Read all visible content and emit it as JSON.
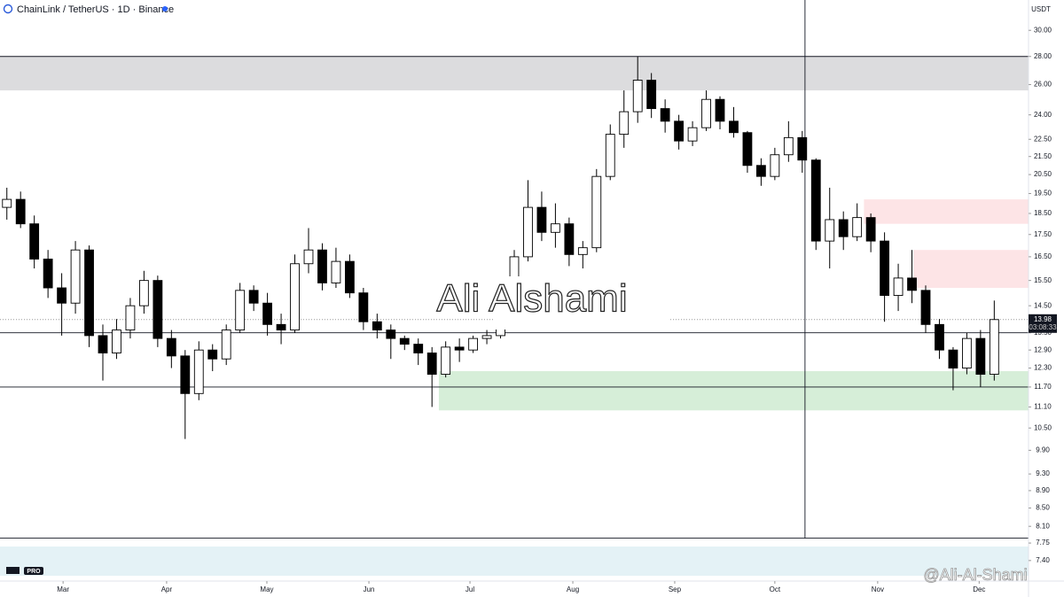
{
  "header": {
    "title": "ChainLink / TetherUS · 1D · Binance",
    "currency": "USDT"
  },
  "watermark": "Ali Alshami",
  "signature": "@Ali-Al-Shami",
  "logo": "PRO",
  "chart_data": {
    "type": "candlestick",
    "log_scale": true,
    "up_color": "#ffffff",
    "down_color": "#000000",
    "ylim": [
      7.01,
      32.5
    ],
    "xlim": [
      -0.5,
      74.5
    ],
    "yticks": [
      {
        "value": 30,
        "label": "30.00"
      },
      {
        "value": 28,
        "label": "28.00"
      },
      {
        "value": 26,
        "label": "26.00"
      },
      {
        "value": 24,
        "label": "24.00"
      },
      {
        "value": 22.5,
        "label": "22.50"
      },
      {
        "value": 21.5,
        "label": "21.50"
      },
      {
        "value": 20.5,
        "label": "20.50"
      },
      {
        "value": 19.5,
        "label": "19.50"
      },
      {
        "value": 18.5,
        "label": "18.50"
      },
      {
        "value": 17.5,
        "label": "17.50"
      },
      {
        "value": 16.5,
        "label": "16.50"
      },
      {
        "value": 15.5,
        "label": "15.50"
      },
      {
        "value": 14.5,
        "label": "14.50"
      },
      {
        "value": 13.5,
        "label": "13.50"
      },
      {
        "value": 12.9,
        "label": "12.90"
      },
      {
        "value": 12.3,
        "label": "12.30"
      },
      {
        "value": 11.7,
        "label": "11.70"
      },
      {
        "value": 11.1,
        "label": "11.10"
      },
      {
        "value": 10.5,
        "label": "10.50"
      },
      {
        "value": 9.9,
        "label": "9.90"
      },
      {
        "value": 9.3,
        "label": "9.30"
      },
      {
        "value": 8.9,
        "label": "8.90"
      },
      {
        "value": 8.5,
        "label": "8.50"
      },
      {
        "value": 8.1,
        "label": "8.10"
      },
      {
        "value": 7.75,
        "label": "7.75"
      },
      {
        "value": 7.4,
        "label": "7.40"
      }
    ],
    "xticks": [
      {
        "value": 4.1,
        "label": "Mar"
      },
      {
        "value": 11.65,
        "label": "Apr"
      },
      {
        "value": 18.96,
        "label": "May"
      },
      {
        "value": 26.4,
        "label": "Jun"
      },
      {
        "value": 33.77,
        "label": "Jul"
      },
      {
        "value": 41.27,
        "label": "Aug"
      },
      {
        "value": 48.7,
        "label": "Sep"
      },
      {
        "value": 56.0,
        "label": "Oct"
      },
      {
        "value": 63.5,
        "label": "Nov"
      },
      {
        "value": 70.9,
        "label": "Dec"
      }
    ],
    "ohlc": [
      [
        18.8,
        19.8,
        18.2,
        19.2
      ],
      [
        19.2,
        19.6,
        17.8,
        18.0
      ],
      [
        18.0,
        18.4,
        16.0,
        16.4
      ],
      [
        16.4,
        16.8,
        14.8,
        15.2
      ],
      [
        15.2,
        15.8,
        13.4,
        14.6
      ],
      [
        14.6,
        17.2,
        14.2,
        16.8
      ],
      [
        16.8,
        17.0,
        13.0,
        13.4
      ],
      [
        13.4,
        13.8,
        11.9,
        12.8
      ],
      [
        12.8,
        14.0,
        12.6,
        13.6
      ],
      [
        13.6,
        14.8,
        13.3,
        14.5
      ],
      [
        14.5,
        15.9,
        14.2,
        15.5
      ],
      [
        15.5,
        15.7,
        13.0,
        13.3
      ],
      [
        13.3,
        13.6,
        12.3,
        12.7
      ],
      [
        12.7,
        12.9,
        10.2,
        11.5
      ],
      [
        11.5,
        13.2,
        11.3,
        12.9
      ],
      [
        12.9,
        13.1,
        12.2,
        12.6
      ],
      [
        12.6,
        13.8,
        12.4,
        13.6
      ],
      [
        13.6,
        15.4,
        13.5,
        15.1
      ],
      [
        15.1,
        15.3,
        14.3,
        14.6
      ],
      [
        14.6,
        15.0,
        13.4,
        13.8
      ],
      [
        13.8,
        14.2,
        13.1,
        13.6
      ],
      [
        13.6,
        16.6,
        13.5,
        16.2
      ],
      [
        16.2,
        17.8,
        15.8,
        16.8
      ],
      [
        16.8,
        17.1,
        15.1,
        15.4
      ],
      [
        15.4,
        16.9,
        15.2,
        16.3
      ],
      [
        16.3,
        16.6,
        14.8,
        15.0
      ],
      [
        15.0,
        15.2,
        13.6,
        13.9
      ],
      [
        13.9,
        14.2,
        13.3,
        13.6
      ],
      [
        13.6,
        13.8,
        12.6,
        13.3
      ],
      [
        13.3,
        13.4,
        12.9,
        13.1
      ],
      [
        13.1,
        13.3,
        12.4,
        12.8
      ],
      [
        12.8,
        13.0,
        11.1,
        12.1
      ],
      [
        12.1,
        13.2,
        12.0,
        13.0
      ],
      [
        13.0,
        13.3,
        12.5,
        12.9
      ],
      [
        12.9,
        13.4,
        12.8,
        13.3
      ],
      [
        13.3,
        13.6,
        13.1,
        13.4
      ],
      [
        13.4,
        15.2,
        13.3,
        15.0
      ],
      [
        15.0,
        16.8,
        14.8,
        16.5
      ],
      [
        16.5,
        20.2,
        16.3,
        18.8
      ],
      [
        18.8,
        19.6,
        17.2,
        17.6
      ],
      [
        17.6,
        19.0,
        16.9,
        18.0
      ],
      [
        18.0,
        18.3,
        16.1,
        16.6
      ],
      [
        16.6,
        17.2,
        16.0,
        16.9
      ],
      [
        16.9,
        20.8,
        16.7,
        20.4
      ],
      [
        20.4,
        23.4,
        20.2,
        22.8
      ],
      [
        22.8,
        25.6,
        22.0,
        24.2
      ],
      [
        24.2,
        28.0,
        23.5,
        26.3
      ],
      [
        26.3,
        26.8,
        23.8,
        24.4
      ],
      [
        24.4,
        25.0,
        22.9,
        23.6
      ],
      [
        23.6,
        24.0,
        21.9,
        22.4
      ],
      [
        22.4,
        23.6,
        22.1,
        23.2
      ],
      [
        23.2,
        25.6,
        23.0,
        25.0
      ],
      [
        25.0,
        25.2,
        23.1,
        23.6
      ],
      [
        23.6,
        24.5,
        22.6,
        22.9
      ],
      [
        22.9,
        23.0,
        20.6,
        21.0
      ],
      [
        21.0,
        21.4,
        19.9,
        20.4
      ],
      [
        20.4,
        22.0,
        20.2,
        21.6
      ],
      [
        21.6,
        23.6,
        21.2,
        22.6
      ],
      [
        22.6,
        23.0,
        20.6,
        21.3
      ],
      [
        21.3,
        21.4,
        16.8,
        17.2
      ],
      [
        17.2,
        19.8,
        16.0,
        18.2
      ],
      [
        18.2,
        18.6,
        16.8,
        17.4
      ],
      [
        17.4,
        19.0,
        17.2,
        18.3
      ],
      [
        18.3,
        18.5,
        16.7,
        17.2
      ],
      [
        17.2,
        17.6,
        13.9,
        14.9
      ],
      [
        14.9,
        16.2,
        14.3,
        15.6
      ],
      [
        15.6,
        16.8,
        14.6,
        15.1
      ],
      [
        15.1,
        15.3,
        13.5,
        13.8
      ],
      [
        13.8,
        14.0,
        12.6,
        12.9
      ],
      [
        12.9,
        13.0,
        11.6,
        12.3
      ],
      [
        12.3,
        13.5,
        12.1,
        13.3
      ],
      [
        13.3,
        13.6,
        11.7,
        12.1
      ],
      [
        12.1,
        14.7,
        11.9,
        13.98
      ]
    ],
    "zones": [
      {
        "from": -0.5,
        "ylim": [
          25.6,
          28
        ],
        "color": "#dcdcde"
      },
      {
        "from": 62.5,
        "ylim": [
          18.0,
          19.2
        ],
        "color": "#fde4e6"
      },
      {
        "from": 66.1,
        "ylim": [
          15.2,
          16.8
        ],
        "color": "#fde4e6"
      },
      {
        "from": 31.5,
        "ylim": [
          11.0,
          12.2
        ],
        "color": "#d6eed8"
      }
    ],
    "hlines": [
      28,
      13.5,
      11.7,
      7.85
    ],
    "vline": 58.2,
    "last_price": {
      "value": 13.98,
      "label": "13.98",
      "countdown": "03:08:33"
    }
  }
}
